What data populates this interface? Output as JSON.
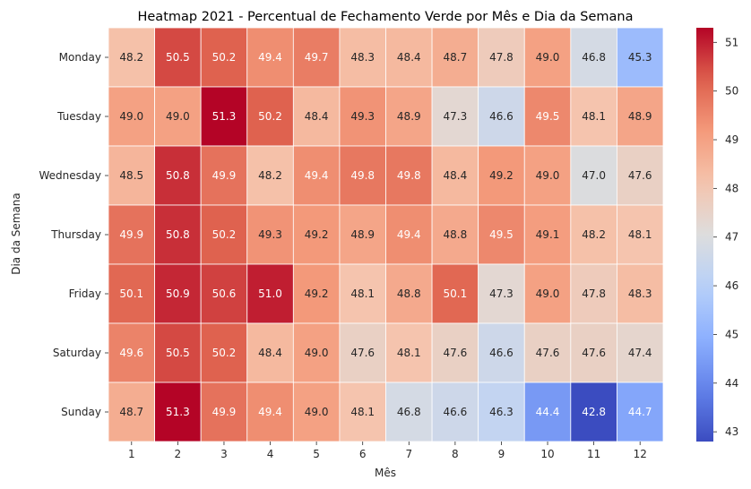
{
  "chart_data": {
    "type": "heatmap",
    "title": "Heatmap 2021 - Percentual de Fechamento Verde por Mês e Dia da Semana",
    "xlabel": "Mês",
    "ylabel": "Dia da Semana",
    "x_categories": [
      "1",
      "2",
      "3",
      "4",
      "5",
      "6",
      "7",
      "8",
      "9",
      "10",
      "11",
      "12"
    ],
    "y_categories": [
      "Monday",
      "Tuesday",
      "Wednesday",
      "Thursday",
      "Friday",
      "Saturday",
      "Sunday"
    ],
    "values": [
      [
        48.2,
        50.5,
        50.2,
        49.4,
        49.7,
        48.3,
        48.4,
        48.7,
        47.8,
        49.0,
        46.8,
        45.3
      ],
      [
        49.0,
        49.0,
        51.3,
        50.2,
        48.4,
        49.3,
        48.9,
        47.3,
        46.6,
        49.5,
        48.1,
        48.9
      ],
      [
        48.5,
        50.8,
        49.9,
        48.2,
        49.4,
        49.8,
        49.8,
        48.4,
        49.2,
        49.0,
        47.0,
        47.6
      ],
      [
        49.9,
        50.8,
        50.2,
        49.3,
        49.2,
        48.9,
        49.4,
        48.8,
        49.5,
        49.1,
        48.2,
        48.1
      ],
      [
        50.1,
        50.9,
        50.6,
        51.0,
        49.2,
        48.1,
        48.8,
        50.1,
        47.3,
        49.0,
        47.8,
        48.3
      ],
      [
        49.6,
        50.5,
        50.2,
        48.4,
        49.0,
        47.6,
        48.1,
        47.6,
        46.6,
        47.6,
        47.6,
        47.4
      ],
      [
        48.7,
        51.3,
        49.9,
        49.4,
        49.0,
        48.1,
        46.8,
        46.6,
        46.3,
        44.4,
        42.8,
        44.7
      ]
    ],
    "value_format": "0.0",
    "colormap": "coolwarm",
    "vmin": 42.8,
    "vmax": 51.3,
    "colorbar_ticks": [
      43,
      44,
      45,
      46,
      47,
      48,
      49,
      50,
      51
    ],
    "cell_border_color": "#ffffff"
  }
}
